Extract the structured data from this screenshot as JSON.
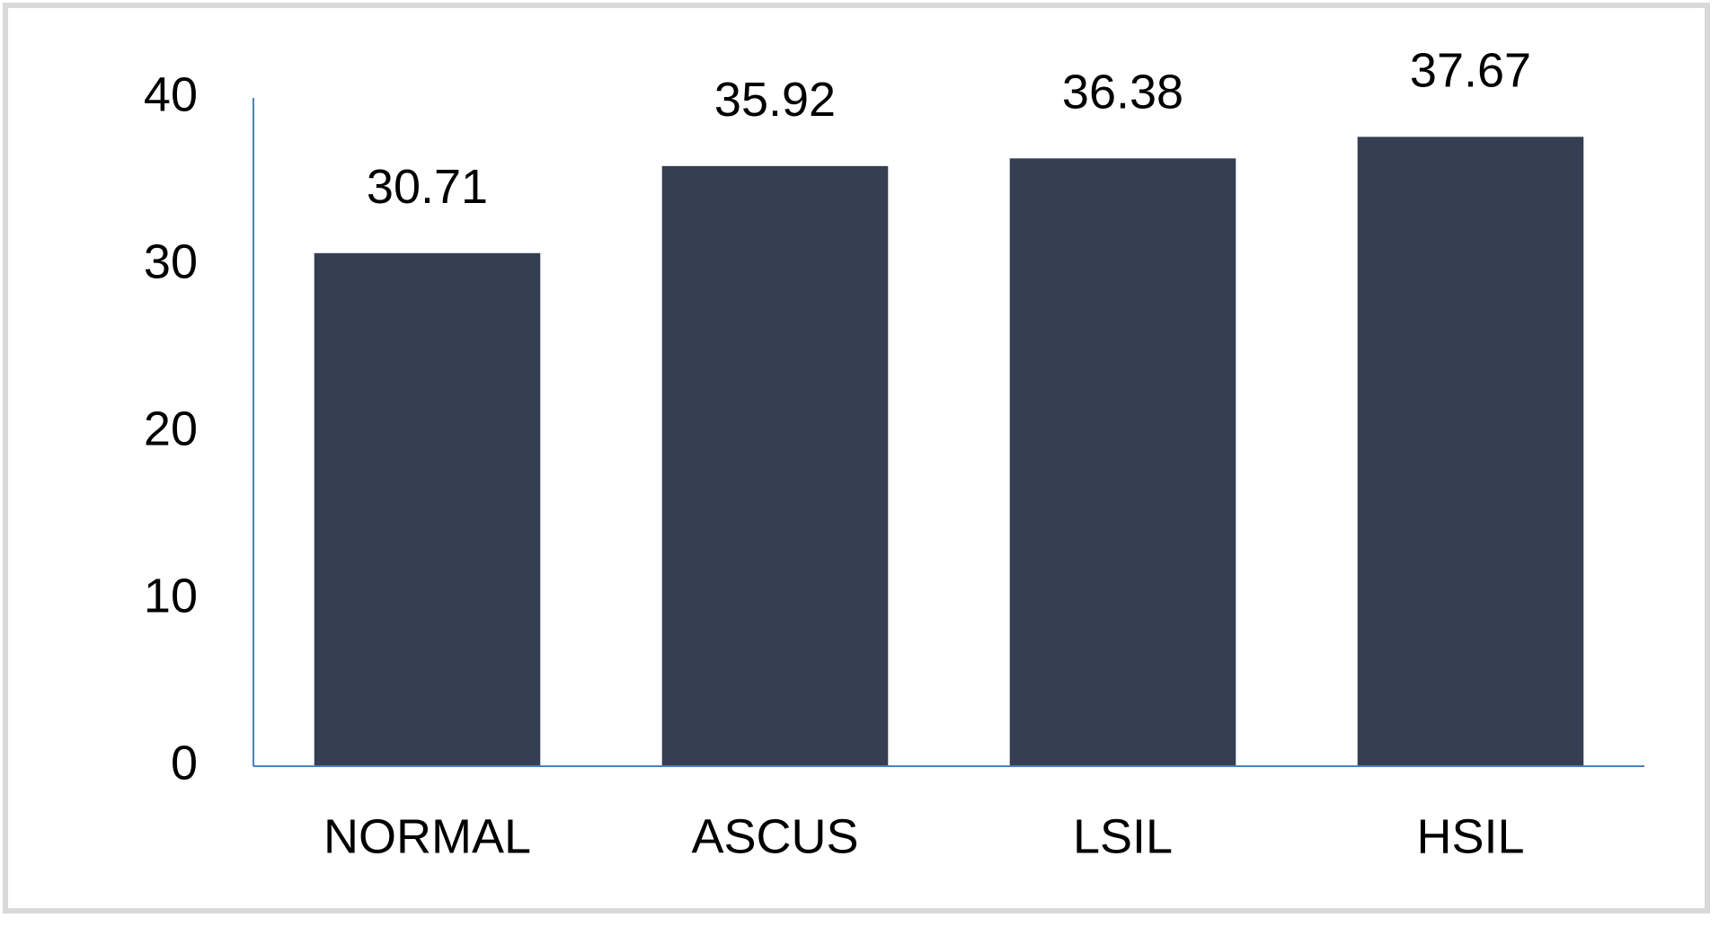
{
  "chart_data": {
    "type": "bar",
    "categories": [
      "NORMAL",
      "ASCUS",
      "LSIL",
      "HSIL"
    ],
    "values": [
      30.71,
      35.92,
      36.38,
      37.67
    ],
    "color": "#353f51",
    "ylim": [
      0,
      40
    ],
    "yticks": [
      0,
      10,
      20,
      30,
      40
    ],
    "grid": false
  }
}
